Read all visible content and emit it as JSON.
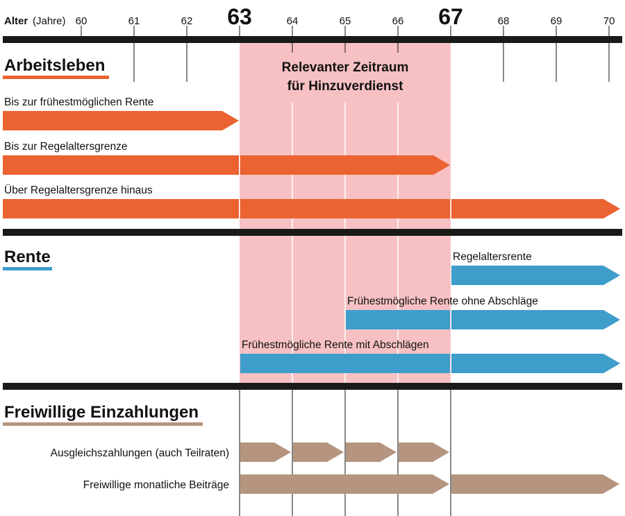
{
  "axis": {
    "label_bold": "Alter",
    "label_rest": "(Jahre)",
    "ages": [
      60,
      61,
      62,
      63,
      64,
      65,
      66,
      67,
      68,
      69,
      70
    ],
    "highlight_ages": [
      63,
      67
    ]
  },
  "highlight": {
    "from": 63,
    "to": 67,
    "line1": "Relevanter Zeitraum",
    "line2": "für Hinzuverdienst",
    "color": "#F7C1C3"
  },
  "sections": [
    {
      "title": "Arbeitsleben",
      "color": "#EA6330",
      "items": [
        {
          "label": "Bis zur frühestmöglichen Rente",
          "segments": [
            [
              60,
              63
            ]
          ]
        },
        {
          "label": "Bis zur Regelaltersgrenze",
          "segments": [
            [
              60,
              63
            ],
            [
              63,
              67
            ]
          ]
        },
        {
          "label": "Über Regelaltersgrenze hinaus",
          "segments": [
            [
              60,
              63
            ],
            [
              63,
              67
            ],
            [
              67,
              70.2
            ]
          ]
        }
      ]
    },
    {
      "title": "Rente",
      "color": "#3F9DCC",
      "items": [
        {
          "label": "Regelaltersrente",
          "segments": [
            [
              67,
              70.2
            ]
          ]
        },
        {
          "label": "Frühestmögliche Rente ohne Abschläge",
          "segments": [
            [
              65,
              67
            ],
            [
              67,
              70.2
            ]
          ]
        },
        {
          "label": "Frühestmögliche Rente mit Abschlägen",
          "segments": [
            [
              63,
              67
            ],
            [
              67,
              70.2
            ]
          ]
        }
      ]
    },
    {
      "title": "Freiwillige Einzahlungen",
      "color": "#B59580",
      "items": [
        {
          "label": "Ausgleichszahlungen (auch Teilraten)",
          "segments": [
            [
              63,
              64
            ],
            [
              64,
              65
            ],
            [
              65,
              66
            ],
            [
              66,
              67
            ]
          ]
        },
        {
          "label": "Freiwillige monatliche Beiträge",
          "segments": [
            [
              63,
              67
            ],
            [
              67,
              70.2
            ]
          ]
        }
      ]
    }
  ]
}
